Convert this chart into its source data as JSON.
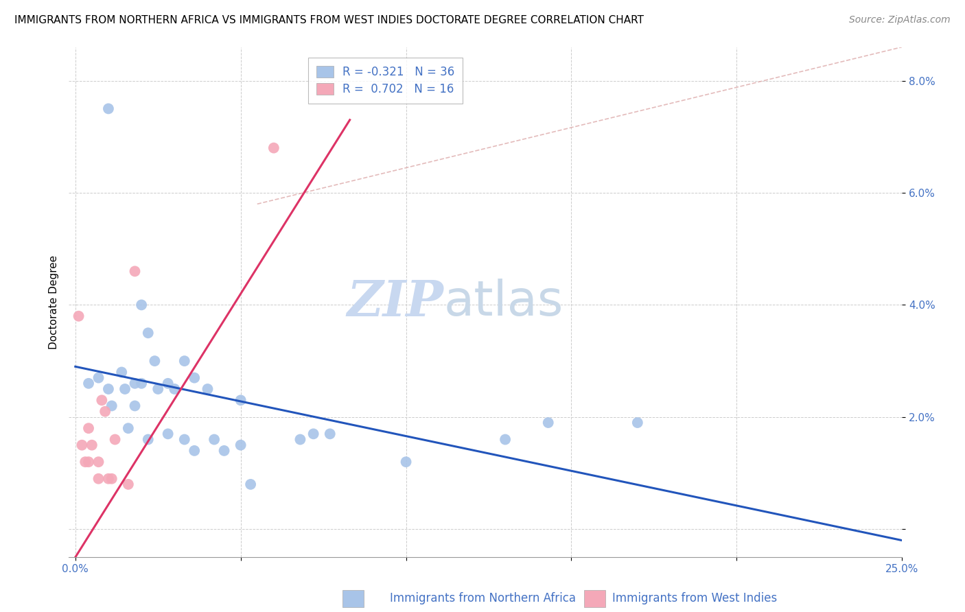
{
  "title": "IMMIGRANTS FROM NORTHERN AFRICA VS IMMIGRANTS FROM WEST INDIES DOCTORATE DEGREE CORRELATION CHART",
  "source": "Source: ZipAtlas.com",
  "ylabel": "Doctorate Degree",
  "y_ticks": [
    0.0,
    0.02,
    0.04,
    0.06,
    0.08
  ],
  "y_tick_labels": [
    "",
    "2.0%",
    "4.0%",
    "6.0%",
    "8.0%"
  ],
  "x_ticks": [
    0.0,
    0.05,
    0.1,
    0.15,
    0.2,
    0.25
  ],
  "x_tick_labels": [
    "0.0%",
    "",
    "",
    "",
    "",
    "25.0%"
  ],
  "xlim": [
    -0.002,
    0.25
  ],
  "ylim": [
    -0.005,
    0.086
  ],
  "watermark_zip": "ZIP",
  "watermark_atlas": "atlas",
  "legend_blue_r": "-0.321",
  "legend_blue_n": "36",
  "legend_pink_r": "0.702",
  "legend_pink_n": "16",
  "blue_color": "#a8c4e8",
  "pink_color": "#f4a8b8",
  "blue_line_color": "#2255bb",
  "pink_line_color": "#dd3366",
  "diag_line_color": "#ddaaaa",
  "grid_color": "#cccccc",
  "text_color": "#4472c4",
  "blue_scatter_x": [
    0.004,
    0.007,
    0.01,
    0.01,
    0.011,
    0.014,
    0.015,
    0.016,
    0.018,
    0.018,
    0.02,
    0.02,
    0.022,
    0.022,
    0.024,
    0.025,
    0.028,
    0.028,
    0.03,
    0.033,
    0.033,
    0.036,
    0.036,
    0.04,
    0.042,
    0.045,
    0.05,
    0.05,
    0.053,
    0.068,
    0.072,
    0.077,
    0.1,
    0.13,
    0.143,
    0.17
  ],
  "blue_scatter_y": [
    0.026,
    0.027,
    0.075,
    0.025,
    0.022,
    0.028,
    0.025,
    0.018,
    0.026,
    0.022,
    0.04,
    0.026,
    0.035,
    0.016,
    0.03,
    0.025,
    0.026,
    0.017,
    0.025,
    0.03,
    0.016,
    0.027,
    0.014,
    0.025,
    0.016,
    0.014,
    0.023,
    0.015,
    0.008,
    0.016,
    0.017,
    0.017,
    0.012,
    0.016,
    0.019,
    0.019
  ],
  "pink_scatter_x": [
    0.001,
    0.002,
    0.003,
    0.004,
    0.004,
    0.005,
    0.007,
    0.007,
    0.008,
    0.009,
    0.01,
    0.011,
    0.012,
    0.016,
    0.018,
    0.06
  ],
  "pink_scatter_y": [
    0.038,
    0.015,
    0.012,
    0.018,
    0.012,
    0.015,
    0.012,
    0.009,
    0.023,
    0.021,
    0.009,
    0.009,
    0.016,
    0.008,
    0.046,
    0.068
  ],
  "blue_line_x": [
    0.0,
    0.25
  ],
  "blue_line_y_start": 0.029,
  "blue_line_y_end": -0.002,
  "pink_line_x_start": 0.0,
  "pink_line_x_end": 0.083,
  "pink_line_y_start": -0.005,
  "pink_line_y_end": 0.073,
  "diag_line_x_start": 0.055,
  "diag_line_x_end": 0.25,
  "diag_line_y_start": 0.058,
  "diag_line_y_end": 0.086,
  "title_fontsize": 11,
  "source_fontsize": 10,
  "tick_fontsize": 11,
  "label_fontsize": 11,
  "legend_fontsize": 12,
  "watermark_fontsize_zip": 52,
  "watermark_fontsize_atlas": 52,
  "scatter_size": 130,
  "bottom_legend_label1": "Immigrants from Northern Africa",
  "bottom_legend_label2": "Immigrants from West Indies"
}
